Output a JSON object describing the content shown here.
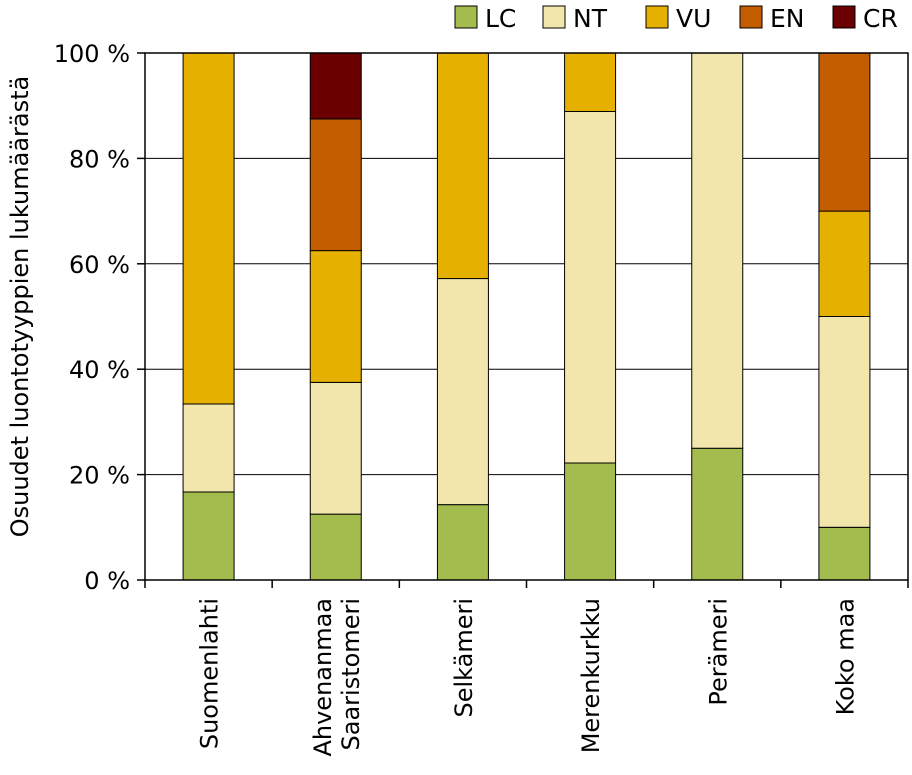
{
  "chart_data": {
    "type": "bar",
    "stacked": true,
    "title": "",
    "xlabel": "",
    "ylabel": "Osuudet luontotyyppien lukumäärästä",
    "ylim": [
      0,
      100
    ],
    "yticks": [
      0,
      20,
      40,
      60,
      80,
      100
    ],
    "ytick_labels": [
      "0 %",
      "20 %",
      "40 %",
      "60 %",
      "80 %",
      "100 %"
    ],
    "grid": true,
    "legend_position": "top",
    "categories": [
      [
        "Suomenlahti"
      ],
      [
        "Ahvenanmaa",
        "Saaristomeri"
      ],
      [
        "Selkämeri"
      ],
      [
        "Merenkurkku"
      ],
      [
        "Perämeri"
      ],
      [
        "Koko maa"
      ]
    ],
    "series": [
      {
        "name": "LC",
        "color": "#a4bc4e",
        "values": [
          16.7,
          12.5,
          14.3,
          22.2,
          25.0,
          10.0
        ]
      },
      {
        "name": "NT",
        "color": "#f3e6ad",
        "values": [
          16.7,
          25.0,
          42.9,
          66.7,
          75.0,
          40.0
        ]
      },
      {
        "name": "VU",
        "color": "#e6b000",
        "values": [
          66.6,
          25.0,
          42.8,
          11.1,
          0,
          20.0
        ]
      },
      {
        "name": "EN",
        "color": "#c45c00",
        "values": [
          0,
          25.0,
          0,
          0,
          0,
          30.0
        ]
      },
      {
        "name": "CR",
        "color": "#6b0000",
        "values": [
          0,
          12.5,
          0,
          0,
          0,
          0
        ]
      }
    ]
  }
}
